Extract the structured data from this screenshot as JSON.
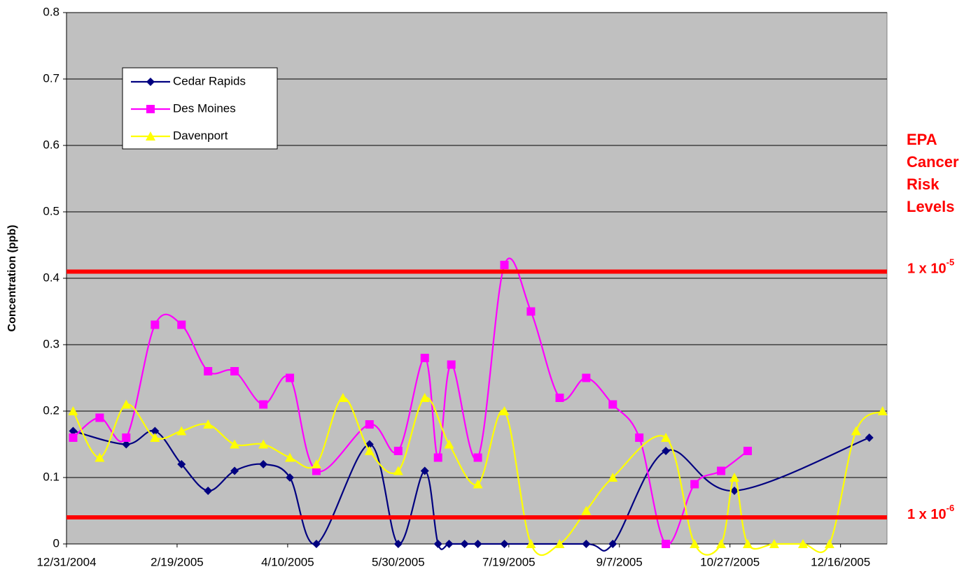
{
  "chart_data": {
    "type": "line",
    "y_label": "Concentration (ppb)",
    "ylim": [
      0,
      0.8
    ],
    "yticks": [
      0,
      0.1,
      0.2,
      0.3,
      0.4,
      0.5,
      0.6,
      0.7,
      0.8
    ],
    "xlim": [
      "12/31/2004",
      "1/6/2006"
    ],
    "xticks": [
      "12/31/2004",
      "2/19/2005",
      "4/10/2005",
      "5/30/2005",
      "7/19/2005",
      "9/7/2005",
      "10/27/2005",
      "12/16/2005"
    ],
    "grid": true,
    "smooth": true,
    "legend": "upper left",
    "series": [
      {
        "name": "Cedar Rapids",
        "color": "#000080",
        "marker": "diamond",
        "x": [
          "1/3/2005",
          "1/27/2005",
          "2/9/2005",
          "2/21/2005",
          "3/5/2005",
          "3/17/2005",
          "3/30/2005",
          "4/11/2005",
          "4/23/2005",
          "5/17/2005",
          "5/30/2005",
          "6/11/2005",
          "6/17/2005",
          "6/22/2005",
          "6/29/2005",
          "7/5/2005",
          "7/17/2005",
          "8/23/2005",
          "9/4/2005",
          "9/28/2005",
          "10/29/2005",
          "12/29/2005"
        ],
        "values": [
          0.17,
          0.15,
          0.17,
          0.12,
          0.08,
          0.11,
          0.12,
          0.1,
          0,
          0.15,
          0,
          0.11,
          0,
          0,
          0,
          0,
          0,
          0,
          0,
          0.14,
          0.08,
          0.16
        ]
      },
      {
        "name": "Des Moines",
        "color": "#ff00ff",
        "marker": "square",
        "x": [
          "1/3/2005",
          "1/15/2005",
          "1/27/2005",
          "2/9/2005",
          "2/21/2005",
          "3/5/2005",
          "3/17/2005",
          "3/30/2005",
          "4/11/2005",
          "4/23/2005",
          "5/17/2005",
          "5/30/2005",
          "6/11/2005",
          "6/17/2005",
          "6/23/2005",
          "7/5/2005",
          "7/17/2005",
          "7/29/2005",
          "8/11/2005",
          "8/23/2005",
          "9/4/2005",
          "9/16/2005",
          "9/28/2005",
          "10/11/2005",
          "10/23/2005",
          "11/4/2005"
        ],
        "values": [
          0.16,
          0.19,
          0.16,
          0.33,
          0.33,
          0.26,
          0.26,
          0.21,
          0.25,
          0.11,
          0.18,
          0.14,
          0.28,
          0.13,
          0.27,
          0.13,
          0.42,
          0.35,
          0.22,
          0.25,
          0.21,
          0.16,
          0,
          0.09,
          0.11,
          0.14
        ]
      },
      {
        "name": "Davenport",
        "color": "#ffff00",
        "marker": "triangle",
        "x": [
          "1/3/2005",
          "1/15/2005",
          "1/27/2005",
          "2/9/2005",
          "2/21/2005",
          "3/5/2005",
          "3/17/2005",
          "3/30/2005",
          "4/11/2005",
          "4/23/2005",
          "5/5/2005",
          "5/17/2005",
          "5/30/2005",
          "6/11/2005",
          "6/22/2005",
          "7/5/2005",
          "7/17/2005",
          "7/29/2005",
          "8/11/2005",
          "8/23/2005",
          "9/4/2005",
          "9/28/2005",
          "10/11/2005",
          "10/23/2005",
          "10/29/2005",
          "11/4/2005",
          "11/16/2005",
          "11/29/2005",
          "12/11/2005",
          "12/23/2005",
          "1/4/2006"
        ],
        "values": [
          0.2,
          0.13,
          0.21,
          0.16,
          0.17,
          0.18,
          0.15,
          0.15,
          0.13,
          0.12,
          0.22,
          0.14,
          0.11,
          0.22,
          0.15,
          0.09,
          0.2,
          0,
          0,
          0.05,
          0.1,
          0.16,
          0,
          0,
          0.1,
          0,
          0,
          0,
          0,
          0.17,
          0.2
        ]
      }
    ],
    "reference_title": "EPA Cancer Risk Levels",
    "reference_lines": [
      {
        "value": 0.41,
        "label": "1 x 10",
        "exponent": "-5",
        "color": "#ff0000"
      },
      {
        "value": 0.04,
        "label": "1 x 10",
        "exponent": "-6",
        "color": "#ff0000"
      }
    ]
  }
}
